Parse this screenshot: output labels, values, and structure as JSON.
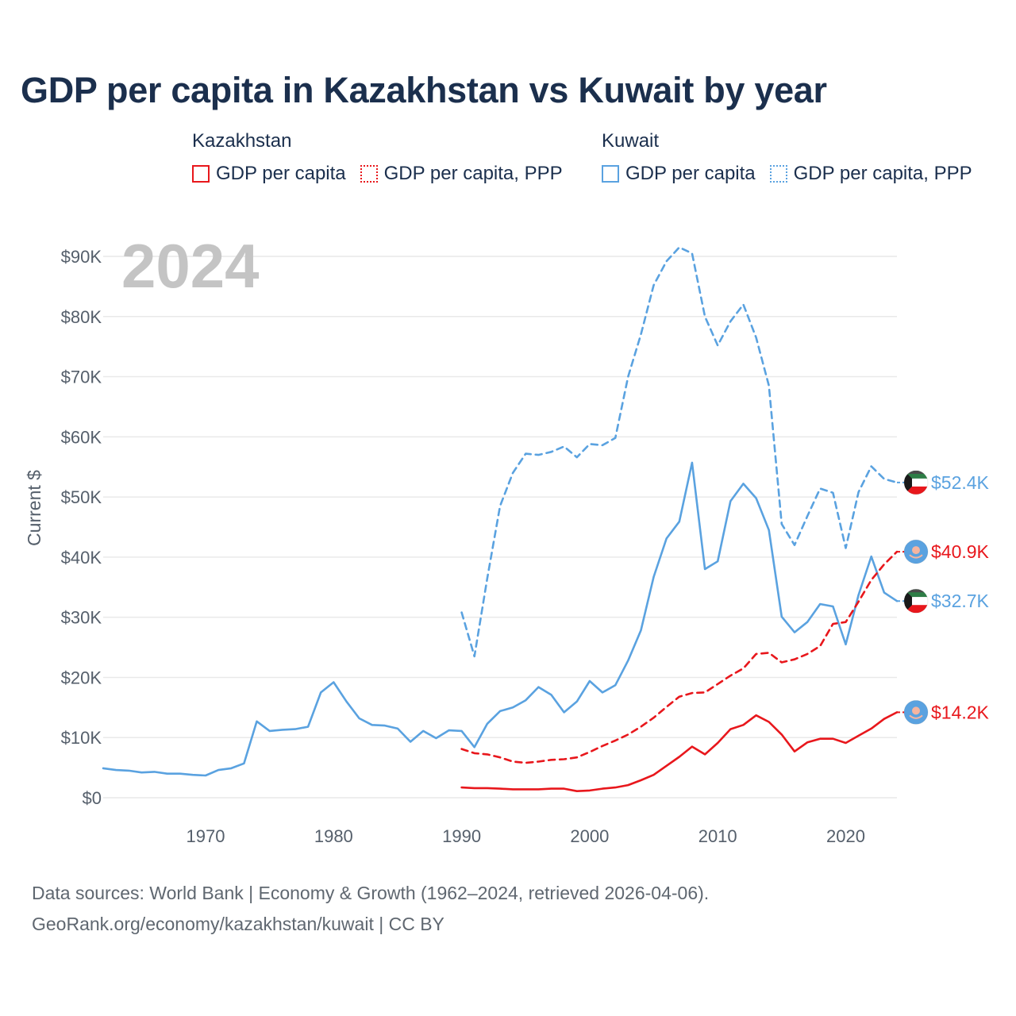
{
  "title": "GDP per capita in Kazakhstan vs Kuwait by year",
  "legend": {
    "groups": [
      {
        "country": "Kazakhstan",
        "items": [
          "GDP per capita",
          "GDP per capita, PPP"
        ]
      },
      {
        "country": "Kuwait",
        "items": [
          "GDP per capita",
          "GDP per capita, PPP"
        ]
      }
    ]
  },
  "colors": {
    "kazakhstan": "#e8171c",
    "kuwait": "#5aa2e0",
    "grid": "#e9e9e9",
    "year_label": "#c4c4c4"
  },
  "footer": {
    "line1": "Data sources: World Bank | Economy & Growth (1962–2024, retrieved 2026-04-06).",
    "line2": "GeoRank.org/economy/kazakhstan/kuwait | CC BY"
  },
  "chart_data": {
    "type": "line",
    "year_label": "2024",
    "ylabel": "Current $",
    "xlim": [
      1962,
      2024
    ],
    "ylim": [
      0,
      90000
    ],
    "x_ticks": [
      1970,
      1980,
      1990,
      2000,
      2010,
      2020
    ],
    "x_tick_labels": [
      "1970",
      "1980",
      "1990",
      "2000",
      "2010",
      "2020"
    ],
    "y_ticks": [
      0,
      10000,
      20000,
      30000,
      40000,
      50000,
      60000,
      70000,
      80000,
      90000
    ],
    "y_tick_labels": [
      "$0",
      "$10K",
      "$20K",
      "$30K",
      "$40K",
      "$50K",
      "$60K",
      "$70K",
      "$80K",
      "$90K"
    ],
    "grid": true,
    "series": [
      {
        "name": "Kuwait GDP per capita PPP",
        "country": "Kuwait",
        "color": "#5aa2e0",
        "style": "dashed",
        "end_label": "$52.4K",
        "flag": "kuwait-flag-icon",
        "x": [
          1990,
          1991,
          1992,
          1993,
          1994,
          1995,
          1996,
          1997,
          1998,
          1999,
          2000,
          2001,
          2002,
          2003,
          2004,
          2005,
          2006,
          2007,
          2008,
          2009,
          2010,
          2011,
          2012,
          2013,
          2014,
          2015,
          2016,
          2017,
          2018,
          2019,
          2020,
          2021,
          2022,
          2023,
          2024
        ],
        "y": [
          30800,
          23500,
          36500,
          48500,
          54000,
          57200,
          57000,
          57500,
          58400,
          56600,
          58800,
          58600,
          59800,
          70000,
          77000,
          85200,
          89200,
          91500,
          90500,
          80000,
          75200,
          79200,
          82000,
          76500,
          68500,
          45500,
          42000,
          46800,
          51400,
          50700,
          41500,
          50800,
          55100,
          53000,
          52400
        ]
      },
      {
        "name": "Kuwait GDP per capita",
        "country": "Kuwait",
        "color": "#5aa2e0",
        "style": "solid",
        "end_label": "$32.7K",
        "flag": "kuwait-flag-icon",
        "x": [
          1962,
          1963,
          1964,
          1965,
          1966,
          1967,
          1968,
          1969,
          1970,
          1971,
          1972,
          1973,
          1974,
          1975,
          1976,
          1977,
          1978,
          1979,
          1980,
          1981,
          1982,
          1983,
          1984,
          1985,
          1986,
          1987,
          1988,
          1989,
          1990,
          1991,
          1992,
          1993,
          1994,
          1995,
          1996,
          1997,
          1998,
          1999,
          2000,
          2001,
          2002,
          2003,
          2004,
          2005,
          2006,
          2007,
          2008,
          2009,
          2010,
          2011,
          2012,
          2013,
          2014,
          2015,
          2016,
          2017,
          2018,
          2019,
          2020,
          2021,
          2022,
          2023,
          2024
        ],
        "y": [
          4900,
          4600,
          4500,
          4200,
          4300,
          4000,
          4000,
          3800,
          3700,
          4600,
          4900,
          5700,
          12700,
          11100,
          11300,
          11400,
          11800,
          17500,
          19200,
          16000,
          13200,
          12100,
          12000,
          11500,
          9300,
          11100,
          9900,
          11200,
          11100,
          8400,
          12300,
          14400,
          15000,
          16200,
          18400,
          17100,
          14200,
          16000,
          19400,
          17500,
          18700,
          22800,
          27800,
          36700,
          43100,
          45900,
          55700,
          38000,
          39300,
          49300,
          52200,
          49800,
          44500,
          30100,
          27500,
          29200,
          32200,
          31800,
          25500,
          33700,
          40100,
          34100,
          32700
        ]
      },
      {
        "name": "Kazakhstan GDP per capita PPP",
        "country": "Kazakhstan",
        "color": "#e8171c",
        "style": "dashed",
        "end_label": "$40.9K",
        "flag": "kazakhstan-flag-icon",
        "x": [
          1990,
          1991,
          1992,
          1993,
          1994,
          1995,
          1996,
          1997,
          1998,
          1999,
          2000,
          2001,
          2002,
          2003,
          2004,
          2005,
          2006,
          2007,
          2008,
          2009,
          2010,
          2011,
          2012,
          2013,
          2014,
          2015,
          2016,
          2017,
          2018,
          2019,
          2020,
          2021,
          2022,
          2023,
          2024
        ],
        "y": [
          8100,
          7400,
          7200,
          6700,
          6000,
          5800,
          6000,
          6300,
          6400,
          6700,
          7600,
          8600,
          9500,
          10500,
          11800,
          13300,
          15100,
          16800,
          17400,
          17500,
          18900,
          20300,
          21500,
          23900,
          24100,
          22500,
          23000,
          23900,
          25200,
          28900,
          29200,
          32600,
          36200,
          38800,
          40900
        ]
      },
      {
        "name": "Kazakhstan GDP per capita",
        "country": "Kazakhstan",
        "color": "#e8171c",
        "style": "solid",
        "end_label": "$14.2K",
        "flag": "kazakhstan-flag-icon",
        "x": [
          1990,
          1991,
          1992,
          1993,
          1994,
          1995,
          1996,
          1997,
          1998,
          1999,
          2000,
          2001,
          2002,
          2003,
          2004,
          2005,
          2006,
          2007,
          2008,
          2009,
          2010,
          2011,
          2012,
          2013,
          2014,
          2015,
          2016,
          2017,
          2018,
          2019,
          2020,
          2021,
          2022,
          2023,
          2024
        ],
        "y": [
          1700,
          1600,
          1600,
          1500,
          1400,
          1400,
          1400,
          1500,
          1500,
          1100,
          1200,
          1500,
          1700,
          2100,
          2900,
          3800,
          5300,
          6800,
          8500,
          7200,
          9100,
          11400,
          12100,
          13700,
          12600,
          10500,
          7700,
          9200,
          9800,
          9800,
          9100,
          10300,
          11500,
          13100,
          14200
        ]
      }
    ]
  }
}
